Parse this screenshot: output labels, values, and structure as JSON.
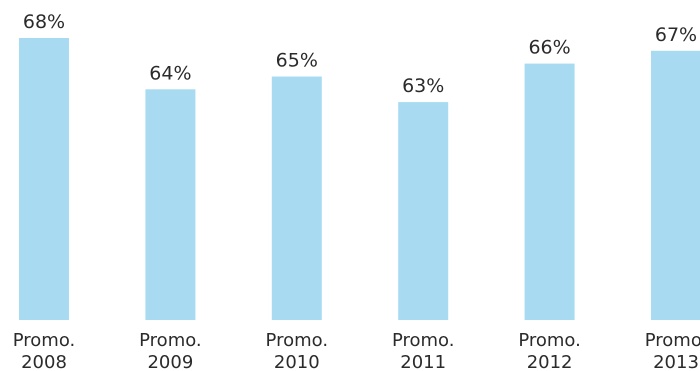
{
  "chart_data": {
    "type": "bar",
    "categories": [
      [
        "Promo.",
        "2008"
      ],
      [
        "Promo.",
        "2009"
      ],
      [
        "Promo.",
        "2010"
      ],
      [
        "Promo.",
        "2011"
      ],
      [
        "Promo.",
        "2012"
      ],
      [
        "Promo.",
        "2013"
      ]
    ],
    "values": [
      68,
      64,
      65,
      63,
      66,
      67
    ],
    "value_labels": [
      "68%",
      "64%",
      "65%",
      "63%",
      "66%",
      "67%"
    ],
    "unit": "%",
    "ylim": [
      46,
      68
    ],
    "grid": false,
    "legend": "none",
    "colors": {
      "bar": "#a8dbf2",
      "text": "#2b2b2b"
    }
  }
}
